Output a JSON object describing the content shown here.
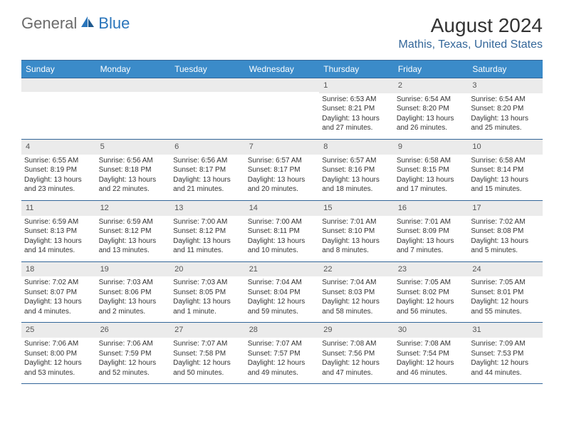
{
  "logo": {
    "part1": "General",
    "part2": "Blue"
  },
  "title": "August 2024",
  "location": "Mathis, Texas, United States",
  "weekdays": [
    "Sunday",
    "Monday",
    "Tuesday",
    "Wednesday",
    "Thursday",
    "Friday",
    "Saturday"
  ],
  "colors": {
    "header_bg": "#3b8bc9",
    "border": "#336699",
    "daynum_bg": "#ebebeb",
    "logo_gray": "#6b6b6b",
    "logo_blue": "#2a75bb"
  },
  "weeks": [
    [
      null,
      null,
      null,
      null,
      {
        "num": "1",
        "sunrise": "Sunrise: 6:53 AM",
        "sunset": "Sunset: 8:21 PM",
        "day1": "Daylight: 13 hours",
        "day2": "and 27 minutes."
      },
      {
        "num": "2",
        "sunrise": "Sunrise: 6:54 AM",
        "sunset": "Sunset: 8:20 PM",
        "day1": "Daylight: 13 hours",
        "day2": "and 26 minutes."
      },
      {
        "num": "3",
        "sunrise": "Sunrise: 6:54 AM",
        "sunset": "Sunset: 8:20 PM",
        "day1": "Daylight: 13 hours",
        "day2": "and 25 minutes."
      }
    ],
    [
      {
        "num": "4",
        "sunrise": "Sunrise: 6:55 AM",
        "sunset": "Sunset: 8:19 PM",
        "day1": "Daylight: 13 hours",
        "day2": "and 23 minutes."
      },
      {
        "num": "5",
        "sunrise": "Sunrise: 6:56 AM",
        "sunset": "Sunset: 8:18 PM",
        "day1": "Daylight: 13 hours",
        "day2": "and 22 minutes."
      },
      {
        "num": "6",
        "sunrise": "Sunrise: 6:56 AM",
        "sunset": "Sunset: 8:17 PM",
        "day1": "Daylight: 13 hours",
        "day2": "and 21 minutes."
      },
      {
        "num": "7",
        "sunrise": "Sunrise: 6:57 AM",
        "sunset": "Sunset: 8:17 PM",
        "day1": "Daylight: 13 hours",
        "day2": "and 20 minutes."
      },
      {
        "num": "8",
        "sunrise": "Sunrise: 6:57 AM",
        "sunset": "Sunset: 8:16 PM",
        "day1": "Daylight: 13 hours",
        "day2": "and 18 minutes."
      },
      {
        "num": "9",
        "sunrise": "Sunrise: 6:58 AM",
        "sunset": "Sunset: 8:15 PM",
        "day1": "Daylight: 13 hours",
        "day2": "and 17 minutes."
      },
      {
        "num": "10",
        "sunrise": "Sunrise: 6:58 AM",
        "sunset": "Sunset: 8:14 PM",
        "day1": "Daylight: 13 hours",
        "day2": "and 15 minutes."
      }
    ],
    [
      {
        "num": "11",
        "sunrise": "Sunrise: 6:59 AM",
        "sunset": "Sunset: 8:13 PM",
        "day1": "Daylight: 13 hours",
        "day2": "and 14 minutes."
      },
      {
        "num": "12",
        "sunrise": "Sunrise: 6:59 AM",
        "sunset": "Sunset: 8:12 PM",
        "day1": "Daylight: 13 hours",
        "day2": "and 13 minutes."
      },
      {
        "num": "13",
        "sunrise": "Sunrise: 7:00 AM",
        "sunset": "Sunset: 8:12 PM",
        "day1": "Daylight: 13 hours",
        "day2": "and 11 minutes."
      },
      {
        "num": "14",
        "sunrise": "Sunrise: 7:00 AM",
        "sunset": "Sunset: 8:11 PM",
        "day1": "Daylight: 13 hours",
        "day2": "and 10 minutes."
      },
      {
        "num": "15",
        "sunrise": "Sunrise: 7:01 AM",
        "sunset": "Sunset: 8:10 PM",
        "day1": "Daylight: 13 hours",
        "day2": "and 8 minutes."
      },
      {
        "num": "16",
        "sunrise": "Sunrise: 7:01 AM",
        "sunset": "Sunset: 8:09 PM",
        "day1": "Daylight: 13 hours",
        "day2": "and 7 minutes."
      },
      {
        "num": "17",
        "sunrise": "Sunrise: 7:02 AM",
        "sunset": "Sunset: 8:08 PM",
        "day1": "Daylight: 13 hours",
        "day2": "and 5 minutes."
      }
    ],
    [
      {
        "num": "18",
        "sunrise": "Sunrise: 7:02 AM",
        "sunset": "Sunset: 8:07 PM",
        "day1": "Daylight: 13 hours",
        "day2": "and 4 minutes."
      },
      {
        "num": "19",
        "sunrise": "Sunrise: 7:03 AM",
        "sunset": "Sunset: 8:06 PM",
        "day1": "Daylight: 13 hours",
        "day2": "and 2 minutes."
      },
      {
        "num": "20",
        "sunrise": "Sunrise: 7:03 AM",
        "sunset": "Sunset: 8:05 PM",
        "day1": "Daylight: 13 hours",
        "day2": "and 1 minute."
      },
      {
        "num": "21",
        "sunrise": "Sunrise: 7:04 AM",
        "sunset": "Sunset: 8:04 PM",
        "day1": "Daylight: 12 hours",
        "day2": "and 59 minutes."
      },
      {
        "num": "22",
        "sunrise": "Sunrise: 7:04 AM",
        "sunset": "Sunset: 8:03 PM",
        "day1": "Daylight: 12 hours",
        "day2": "and 58 minutes."
      },
      {
        "num": "23",
        "sunrise": "Sunrise: 7:05 AM",
        "sunset": "Sunset: 8:02 PM",
        "day1": "Daylight: 12 hours",
        "day2": "and 56 minutes."
      },
      {
        "num": "24",
        "sunrise": "Sunrise: 7:05 AM",
        "sunset": "Sunset: 8:01 PM",
        "day1": "Daylight: 12 hours",
        "day2": "and 55 minutes."
      }
    ],
    [
      {
        "num": "25",
        "sunrise": "Sunrise: 7:06 AM",
        "sunset": "Sunset: 8:00 PM",
        "day1": "Daylight: 12 hours",
        "day2": "and 53 minutes."
      },
      {
        "num": "26",
        "sunrise": "Sunrise: 7:06 AM",
        "sunset": "Sunset: 7:59 PM",
        "day1": "Daylight: 12 hours",
        "day2": "and 52 minutes."
      },
      {
        "num": "27",
        "sunrise": "Sunrise: 7:07 AM",
        "sunset": "Sunset: 7:58 PM",
        "day1": "Daylight: 12 hours",
        "day2": "and 50 minutes."
      },
      {
        "num": "28",
        "sunrise": "Sunrise: 7:07 AM",
        "sunset": "Sunset: 7:57 PM",
        "day1": "Daylight: 12 hours",
        "day2": "and 49 minutes."
      },
      {
        "num": "29",
        "sunrise": "Sunrise: 7:08 AM",
        "sunset": "Sunset: 7:56 PM",
        "day1": "Daylight: 12 hours",
        "day2": "and 47 minutes."
      },
      {
        "num": "30",
        "sunrise": "Sunrise: 7:08 AM",
        "sunset": "Sunset: 7:54 PM",
        "day1": "Daylight: 12 hours",
        "day2": "and 46 minutes."
      },
      {
        "num": "31",
        "sunrise": "Sunrise: 7:09 AM",
        "sunset": "Sunset: 7:53 PM",
        "day1": "Daylight: 12 hours",
        "day2": "and 44 minutes."
      }
    ]
  ]
}
